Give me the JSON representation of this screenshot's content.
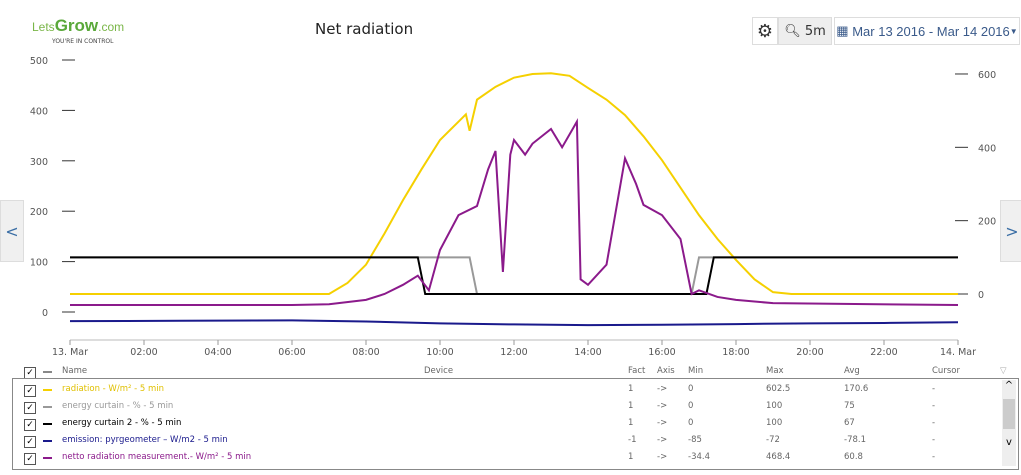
{
  "logo": {
    "brand_a": "Lets",
    "brand_b": "Grow",
    "brand_c": ".com",
    "tagline": "YOU'RE IN CONTROL"
  },
  "title": "Net radiation",
  "toolbar": {
    "settings_icon": "gear-icon",
    "interval": "5m",
    "date_range": "Mar 13 2016 - Mar 14 2016"
  },
  "nav": {
    "prev": "<",
    "next": ">"
  },
  "chart_data": {
    "type": "line",
    "title": "Net radiation",
    "x_ticks": [
      "13. Mar",
      "02:00",
      "04:00",
      "06:00",
      "08:00",
      "10:00",
      "12:00",
      "14:00",
      "16:00",
      "18:00",
      "20:00",
      "22:00",
      "14. Mar"
    ],
    "xlim_hours": [
      0,
      24
    ],
    "left_axis": {
      "ticks": [
        0,
        100,
        200,
        300,
        400,
        500
      ],
      "ylim": [
        -30,
        520
      ]
    },
    "right_axis": {
      "ticks": [
        0,
        200,
        400,
        600
      ],
      "ylim": [
        -90,
        630
      ]
    },
    "series": [
      {
        "name": "radiation - W/m² - 5 min",
        "color": "#f5d000",
        "axis": "right",
        "points": [
          [
            0,
            0
          ],
          [
            7,
            0
          ],
          [
            7.5,
            30
          ],
          [
            8,
            80
          ],
          [
            8.5,
            165
          ],
          [
            9,
            256
          ],
          [
            9.5,
            340
          ],
          [
            10,
            420
          ],
          [
            10.5,
            470
          ],
          [
            10.7,
            490
          ],
          [
            10.8,
            445
          ],
          [
            11,
            530
          ],
          [
            11.5,
            565
          ],
          [
            12,
            590
          ],
          [
            12.5,
            600
          ],
          [
            13,
            602
          ],
          [
            13.5,
            595
          ],
          [
            14,
            562
          ],
          [
            14.5,
            530
          ],
          [
            15,
            488
          ],
          [
            15.5,
            430
          ],
          [
            16,
            365
          ],
          [
            16.5,
            290
          ],
          [
            17,
            215
          ],
          [
            17.5,
            150
          ],
          [
            18,
            93
          ],
          [
            18.5,
            40
          ],
          [
            19,
            5
          ],
          [
            19.5,
            0
          ],
          [
            24,
            0
          ]
        ]
      },
      {
        "name": "energy curtain - % - 5 min",
        "color": "#999999",
        "axis": "right",
        "points": [
          [
            0,
            100
          ],
          [
            10.8,
            100
          ],
          [
            11,
            0
          ],
          [
            16.8,
            0
          ],
          [
            17,
            100
          ],
          [
            24,
            100
          ]
        ]
      },
      {
        "name": "energy curtain 2 - % - 5 min",
        "color": "#000000",
        "axis": "right",
        "points": [
          [
            0,
            100
          ],
          [
            9.4,
            100
          ],
          [
            9.6,
            0
          ],
          [
            17.2,
            0
          ],
          [
            17.4,
            100
          ],
          [
            24,
            100
          ]
        ]
      },
      {
        "name": "emission: pyrgeometer – W/m2 - 5 min",
        "color": "#1a1a8c",
        "axis": "right",
        "points": [
          [
            0,
            -74
          ],
          [
            3,
            -73
          ],
          [
            6,
            -72
          ],
          [
            8,
            -75
          ],
          [
            10,
            -80
          ],
          [
            12,
            -83
          ],
          [
            14,
            -85
          ],
          [
            16,
            -84
          ],
          [
            18,
            -82
          ],
          [
            20,
            -80
          ],
          [
            22,
            -79
          ],
          [
            24,
            -77
          ]
        ]
      },
      {
        "name": "netto radiation measurement.- W/m² - 5 min",
        "color": "#8b1a8b",
        "axis": "right",
        "points": [
          [
            0,
            -30
          ],
          [
            6,
            -30
          ],
          [
            7,
            -28
          ],
          [
            8,
            -16
          ],
          [
            8.5,
            0
          ],
          [
            9,
            25
          ],
          [
            9.4,
            50
          ],
          [
            9.7,
            10
          ],
          [
            10,
            120
          ],
          [
            10.5,
            215
          ],
          [
            11,
            240
          ],
          [
            11.3,
            340
          ],
          [
            11.5,
            390
          ],
          [
            11.7,
            60
          ],
          [
            11.9,
            380
          ],
          [
            12,
            420
          ],
          [
            12.3,
            380
          ],
          [
            12.5,
            410
          ],
          [
            13,
            450
          ],
          [
            13.3,
            400
          ],
          [
            13.7,
            470
          ],
          [
            13.8,
            40
          ],
          [
            14,
            25
          ],
          [
            14.5,
            80
          ],
          [
            15,
            370
          ],
          [
            15.3,
            300
          ],
          [
            15.5,
            243
          ],
          [
            16,
            215
          ],
          [
            16.5,
            150
          ],
          [
            16.8,
            0
          ],
          [
            17,
            10
          ],
          [
            17.5,
            -8
          ],
          [
            18,
            -16
          ],
          [
            19,
            -25
          ],
          [
            24,
            -30
          ]
        ]
      }
    ]
  },
  "legend": {
    "headers": {
      "name": "Name",
      "device": "Device",
      "fact": "Fact",
      "axis": "Axis",
      "min": "Min",
      "max": "Max",
      "avg": "Avg",
      "cursor": "Cursor"
    },
    "rows": [
      {
        "name": "radiation - W/m² - 5 min",
        "color": "#f5d000",
        "fact": "1",
        "axis": "->",
        "min": "0",
        "max": "602.5",
        "avg": "170.6",
        "cursor": "-"
      },
      {
        "name": "energy curtain - % - 5 min",
        "color": "#999999",
        "fact": "1",
        "axis": "->",
        "min": "0",
        "max": "100",
        "avg": "75",
        "cursor": "-"
      },
      {
        "name": "energy curtain 2 - % - 5 min",
        "color": "#000000",
        "fact": "1",
        "axis": "->",
        "min": "0",
        "max": "100",
        "avg": "67",
        "cursor": "-"
      },
      {
        "name": "emission: pyrgeometer – W/m2 - 5 min",
        "color": "#1a1a8c",
        "fact": "-1",
        "axis": "->",
        "min": "-85",
        "max": "-72",
        "avg": "-78.1",
        "cursor": "-"
      },
      {
        "name": "netto radiation measurement.- W/m² - 5 min",
        "color": "#8b1a8b",
        "fact": "1",
        "axis": "->",
        "min": "-34.4",
        "max": "468.4",
        "avg": "60.8",
        "cursor": "-"
      }
    ]
  }
}
